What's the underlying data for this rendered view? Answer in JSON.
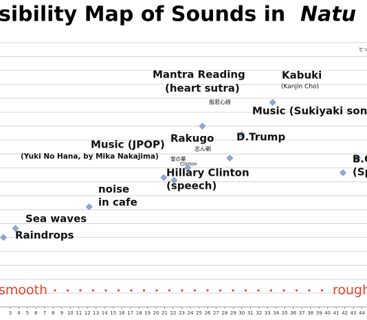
{
  "chart_data": {
    "type": "scatter",
    "title": [
      "sibility Map of Sounds in",
      "Natu"
    ],
    "xlim": [
      1.8,
      44.6
    ],
    "xticks": [
      3,
      4,
      5,
      6,
      7,
      8,
      9,
      10,
      11,
      12,
      13,
      14,
      15,
      16,
      17,
      18,
      19,
      20,
      21,
      22,
      23,
      24,
      25,
      26,
      27,
      28,
      29,
      30,
      31,
      32,
      33,
      34,
      35,
      36,
      37,
      38,
      39,
      40,
      41,
      42,
      43,
      44
    ],
    "ylim": [
      0,
      19.5
    ],
    "yticks": [
      1,
      2,
      3,
      4,
      5,
      6,
      7,
      8,
      9,
      10,
      11,
      12,
      13,
      14,
      15,
      16,
      17,
      18,
      19
    ],
    "ytick_labels": false,
    "grid": true,
    "color": "#8ea9d8",
    "series": [
      {
        "x": [
          2.2,
          3.6,
          12.2,
          20.9,
          22.1,
          23.7,
          28.6,
          25.4,
          30.0,
          33.6,
          41.8,
          43.5
        ],
        "values": [
          5.0,
          5.65,
          7.2,
          9.3,
          9.1,
          10.0,
          10.7,
          13.0,
          12.4,
          14.7,
          9.65,
          10.7
        ]
      }
    ],
    "labels": [
      "Raindrops",
      "Sea waves",
      "noise",
      "in cafe",
      "Music (JPOP)",
      "(Yuki No Hana, by Mika Nakajima)",
      "雪の華",
      "Clinton",
      "Hillary Clinton",
      "(speech)",
      "Rakugo",
      "志ん朝",
      "D.Trump",
      "Mantra Reading",
      "(heart sutra)",
      "般若心経",
      "Music (Sukiyaki song ,",
      "Kabuki",
      "(Kanjin Cho)",
      "B.O",
      "(Sp",
      "ヒッ"
    ],
    "axis_ends": [
      "smooth",
      "rough"
    ],
    "axis_end_color": "#e8402a"
  }
}
